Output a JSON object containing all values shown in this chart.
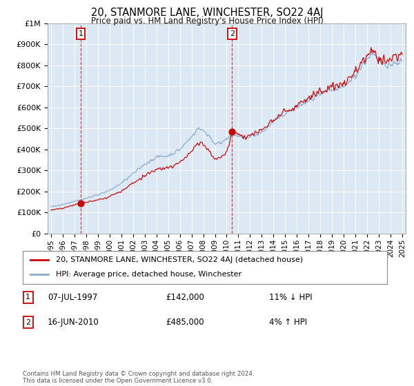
{
  "title": "20, STANMORE LANE, WINCHESTER, SO22 4AJ",
  "subtitle": "Price paid vs. HM Land Registry's House Price Index (HPI)",
  "background_color": "#dce9f5",
  "plot_bg_color": "#dce9f5",
  "ylim": [
    0,
    1000000
  ],
  "yticks": [
    0,
    100000,
    200000,
    300000,
    400000,
    500000,
    600000,
    700000,
    800000,
    900000,
    1000000
  ],
  "ytick_labels": [
    "£0",
    "£100K",
    "£200K",
    "£300K",
    "£400K",
    "£500K",
    "£600K",
    "£700K",
    "£800K",
    "£900K",
    "£1M"
  ],
  "sale1_date": "07-JUL-1997",
  "sale1_price": 142000,
  "sale1_hpi_diff": "11% ↓ HPI",
  "sale1_year": 1997.52,
  "sale2_date": "16-JUN-2010",
  "sale2_price": 485000,
  "sale2_hpi_diff": "4% ↑ HPI",
  "sale2_year": 2010.46,
  "legend_label_red": "20, STANMORE LANE, WINCHESTER, SO22 4AJ (detached house)",
  "legend_label_blue": "HPI: Average price, detached house, Winchester",
  "footer": "Contains HM Land Registry data © Crown copyright and database right 2024.\nThis data is licensed under the Open Government Licence v3.0.",
  "red_line_color": "#cc0000",
  "blue_line_color": "#88aacc",
  "dashed_line_color": "#cc0000",
  "grid_color": "#ffffff",
  "sale_marker_color": "#cc0000",
  "xstart": 1995,
  "xend": 2025
}
